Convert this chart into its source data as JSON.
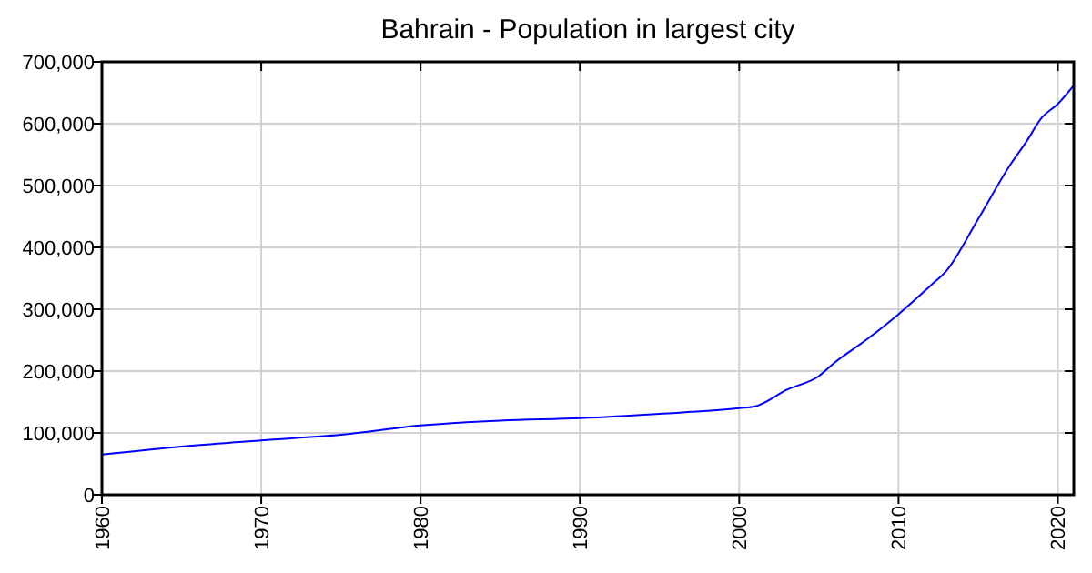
{
  "chart_data": {
    "type": "line",
    "title": "Bahrain - Population in largest city",
    "x": [
      1960,
      1965,
      1970,
      1975,
      1980,
      1985,
      1990,
      1995,
      2000,
      2001,
      2003,
      2005,
      2006,
      2008,
      2010,
      2012,
      2013,
      2015,
      2017,
      2018,
      2019,
      2020,
      2021
    ],
    "series": [
      {
        "color": "#0000ff",
        "values": [
          65000,
          78000,
          88000,
          97000,
          112000,
          120000,
          124000,
          131000,
          140000,
          143000,
          170000,
          192000,
          214000,
          251000,
          292000,
          338000,
          362000,
          446000,
          533000,
          570000,
          610000,
          632000,
          662000
        ]
      }
    ],
    "xlim": [
      1960,
      2021
    ],
    "xticks": [
      1960,
      1970,
      1980,
      1990,
      2000,
      2010,
      2020
    ],
    "ylim": [
      0,
      700000
    ],
    "yticks": [
      0,
      {
        "value": 100000,
        "label": "100,000"
      },
      {
        "value": 200000,
        "label": "200,000"
      },
      {
        "value": 300000,
        "label": "300,000"
      },
      {
        "value": 400000,
        "label": "400,000"
      },
      {
        "value": 500000,
        "label": "500,000"
      },
      {
        "value": 600000,
        "label": "600,000"
      },
      {
        "value": 700000,
        "label": "700,000"
      }
    ],
    "grid": true,
    "line_style": "solid",
    "marker": "none"
  }
}
